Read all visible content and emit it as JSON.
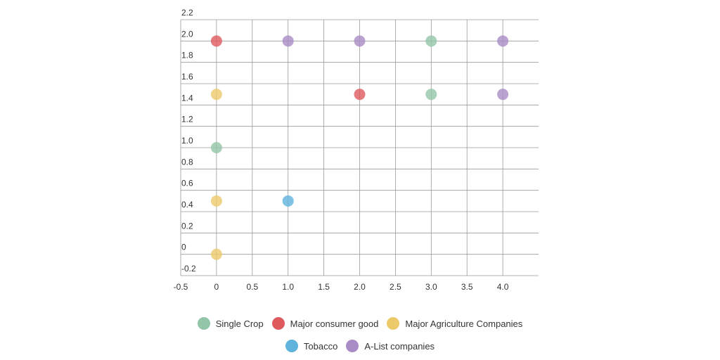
{
  "chart_data": {
    "type": "scatter",
    "title": "",
    "xlabel": "",
    "ylabel": "",
    "xlim": [
      -0.5,
      4.5
    ],
    "ylim": [
      -0.2,
      2.2
    ],
    "x_ticks": [
      "-0.5",
      "0",
      "0.5",
      "1.0",
      "1.5",
      "2.0",
      "2.5",
      "3.0",
      "3.5",
      "4.0"
    ],
    "y_ticks": [
      "2.2",
      "2.0",
      "1.8",
      "1.6",
      "1.4",
      "1.2",
      "1.0",
      "0.8",
      "0.6",
      "0.4",
      "0.2",
      "0",
      "-0.2"
    ],
    "grid": true,
    "legend_position": "bottom",
    "series": [
      {
        "name": "Single Crop",
        "color": "#93c5a8",
        "points": [
          [
            0,
            1.0
          ],
          [
            3,
            2.0
          ],
          [
            3,
            1.5
          ]
        ]
      },
      {
        "name": "Major consumer good",
        "color": "#de5a5f",
        "points": [
          [
            0,
            2.0
          ],
          [
            2,
            1.5
          ]
        ]
      },
      {
        "name": "Major Agriculture Companies",
        "color": "#ecc96b",
        "points": [
          [
            0,
            1.5
          ],
          [
            0,
            0.5
          ],
          [
            0,
            0.0
          ]
        ]
      },
      {
        "name": "Tobacco",
        "color": "#5fb3dc",
        "points": [
          [
            1,
            0.5
          ]
        ]
      },
      {
        "name": "A-List companies",
        "color": "#a98bc6",
        "points": [
          [
            1,
            2.0
          ],
          [
            2,
            2.0
          ],
          [
            4,
            2.0
          ],
          [
            4,
            1.5
          ]
        ]
      }
    ]
  }
}
